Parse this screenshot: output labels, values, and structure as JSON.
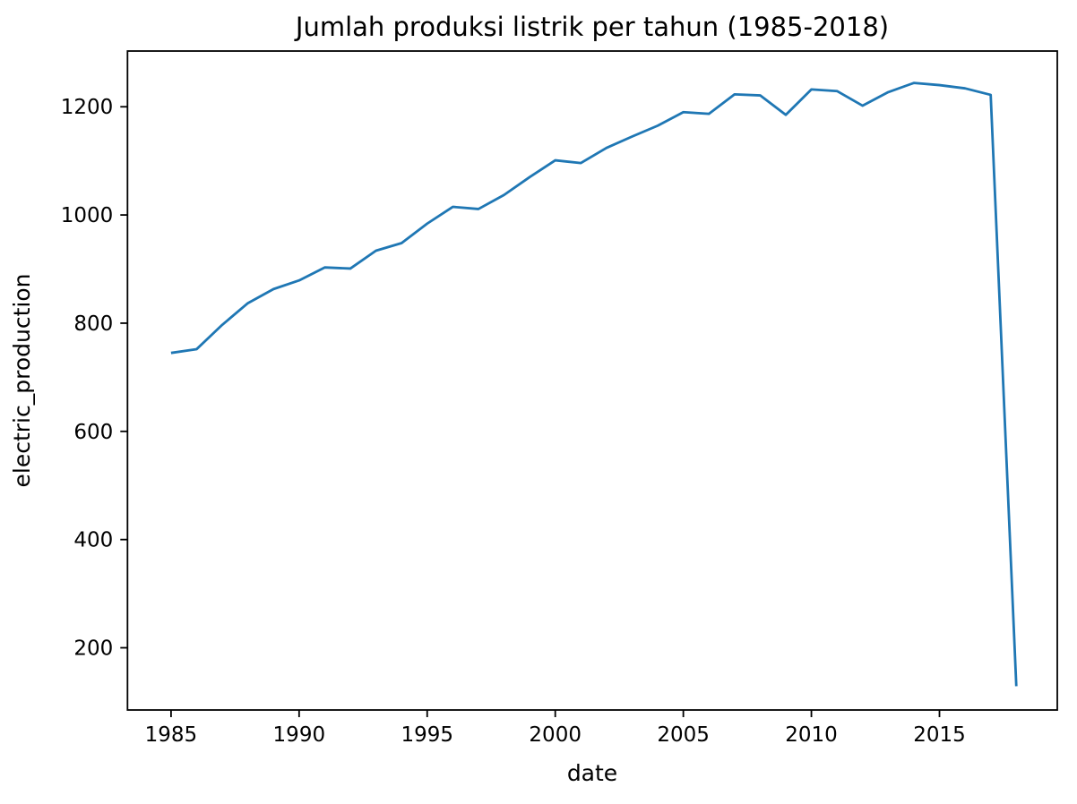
{
  "figure": {
    "background": "#ffffff",
    "axes_edge_color": "#000000",
    "tick_color": "#000000"
  },
  "chart_data": {
    "type": "line",
    "title": "Jumlah produksi listrik per tahun (1985-2018)",
    "xlabel": "date",
    "ylabel": "electric_production",
    "grid": false,
    "legend": null,
    "line_color": "#1f77b4",
    "x": [
      1985,
      1986,
      1987,
      1988,
      1989,
      1990,
      1991,
      1992,
      1993,
      1994,
      1995,
      1996,
      1997,
      1998,
      1999,
      2000,
      2001,
      2002,
      2003,
      2004,
      2005,
      2006,
      2007,
      2008,
      2009,
      2010,
      2011,
      2012,
      2013,
      2014,
      2015,
      2016,
      2017,
      2018
    ],
    "series": [
      {
        "name": "electric_production",
        "color": "#1f77b4",
        "values": [
          745,
          752,
          797,
          837,
          863,
          879,
          903,
          901,
          934,
          948,
          984,
          1015,
          1011,
          1037,
          1070,
          1101,
          1096,
          1124,
          1145,
          1165,
          1190,
          1187,
          1223,
          1221,
          1185,
          1232,
          1229,
          1202,
          1227,
          1244,
          1240,
          1234,
          1222,
          129
        ]
      }
    ],
    "xlim": [
      1983.3,
      2019.6
    ],
    "ylim": [
      85,
      1303
    ],
    "xticks": [
      1985,
      1990,
      1995,
      2000,
      2005,
      2010,
      2015
    ],
    "xtick_labels": [
      "1985",
      "1990",
      "1995",
      "2000",
      "2005",
      "2010",
      "2015"
    ],
    "yticks": [
      200,
      400,
      600,
      800,
      1000,
      1200
    ],
    "ytick_labels": [
      "200",
      "400",
      "600",
      "800",
      "1000",
      "1200"
    ]
  }
}
